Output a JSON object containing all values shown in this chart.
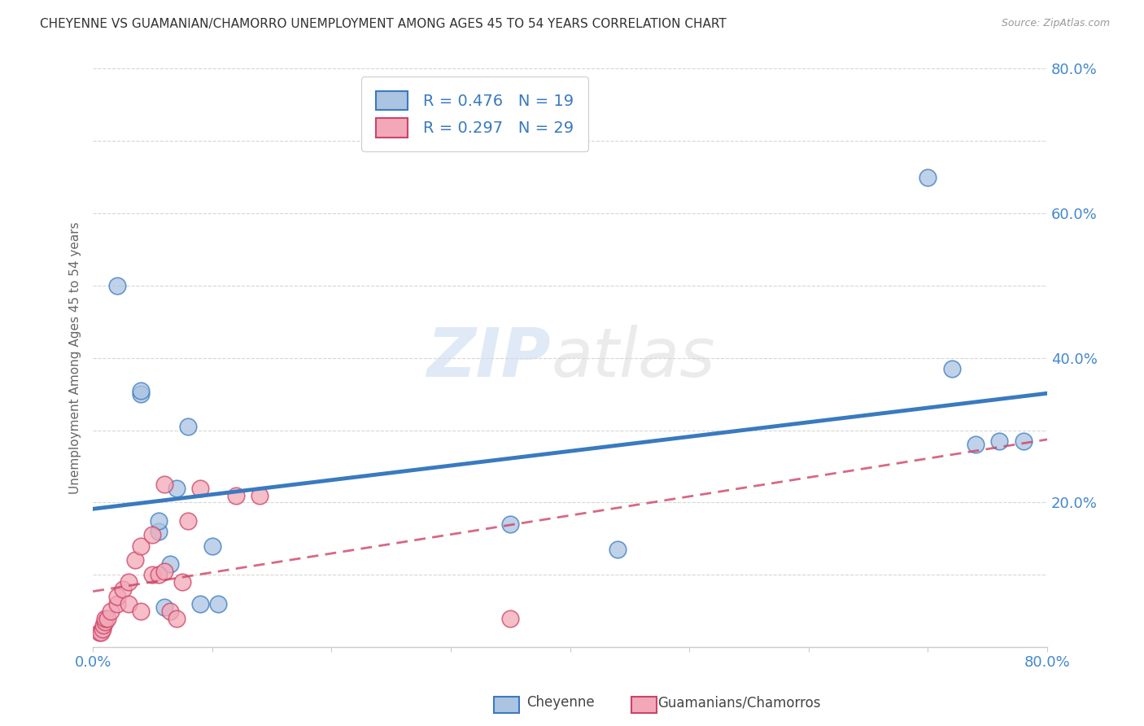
{
  "title": "CHEYENNE VS GUAMANIAN/CHAMORRO UNEMPLOYMENT AMONG AGES 45 TO 54 YEARS CORRELATION CHART",
  "source": "Source: ZipAtlas.com",
  "ylabel": "Unemployment Among Ages 45 to 54 years",
  "xlim": [
    0,
    0.8
  ],
  "ylim": [
    0,
    0.8
  ],
  "xticks": [
    0.0,
    0.1,
    0.2,
    0.3,
    0.4,
    0.5,
    0.6,
    0.7,
    0.8
  ],
  "yticks": [
    0.0,
    0.1,
    0.2,
    0.3,
    0.4,
    0.5,
    0.6,
    0.7,
    0.8
  ],
  "xtick_labels": [
    "0.0%",
    "",
    "",
    "",
    "",
    "",
    "",
    "",
    "80.0%"
  ],
  "ytick_labels_right": [
    "",
    "",
    "20.0%",
    "",
    "40.0%",
    "",
    "60.0%",
    "",
    "80.0%"
  ],
  "watermark_zip": "ZIP",
  "watermark_atlas": "atlas",
  "legend_r1": "R = 0.476",
  "legend_n1": "N = 19",
  "legend_r2": "R = 0.297",
  "legend_n2": "N = 29",
  "legend_label1": "Cheyenne",
  "legend_label2": "Guamanians/Chamorros",
  "cheyenne_color": "#aac4e2",
  "guamanian_color": "#f2a8b8",
  "cheyenne_line_color": "#3a7abf",
  "guamanian_line_color": "#cc4466",
  "cheyenne_x": [
    0.02,
    0.04,
    0.04,
    0.055,
    0.055,
    0.06,
    0.065,
    0.07,
    0.08,
    0.09,
    0.1,
    0.105,
    0.35,
    0.44,
    0.7,
    0.72,
    0.74,
    0.76,
    0.78
  ],
  "cheyenne_y": [
    0.5,
    0.35,
    0.355,
    0.16,
    0.175,
    0.055,
    0.115,
    0.22,
    0.305,
    0.06,
    0.14,
    0.06,
    0.17,
    0.135,
    0.65,
    0.385,
    0.28,
    0.285,
    0.285
  ],
  "guamanian_x": [
    0.005,
    0.007,
    0.008,
    0.009,
    0.01,
    0.01,
    0.012,
    0.015,
    0.02,
    0.02,
    0.025,
    0.03,
    0.03,
    0.035,
    0.04,
    0.04,
    0.05,
    0.05,
    0.055,
    0.06,
    0.06,
    0.065,
    0.07,
    0.075,
    0.08,
    0.09,
    0.12,
    0.14,
    0.35
  ],
  "guamanian_y": [
    0.02,
    0.02,
    0.025,
    0.03,
    0.035,
    0.04,
    0.04,
    0.05,
    0.06,
    0.07,
    0.08,
    0.06,
    0.09,
    0.12,
    0.05,
    0.14,
    0.1,
    0.155,
    0.1,
    0.105,
    0.225,
    0.05,
    0.04,
    0.09,
    0.175,
    0.22,
    0.21,
    0.21,
    0.04
  ],
  "background_color": "#ffffff",
  "grid_color": "#cccccc",
  "tick_color": "#4488cc"
}
